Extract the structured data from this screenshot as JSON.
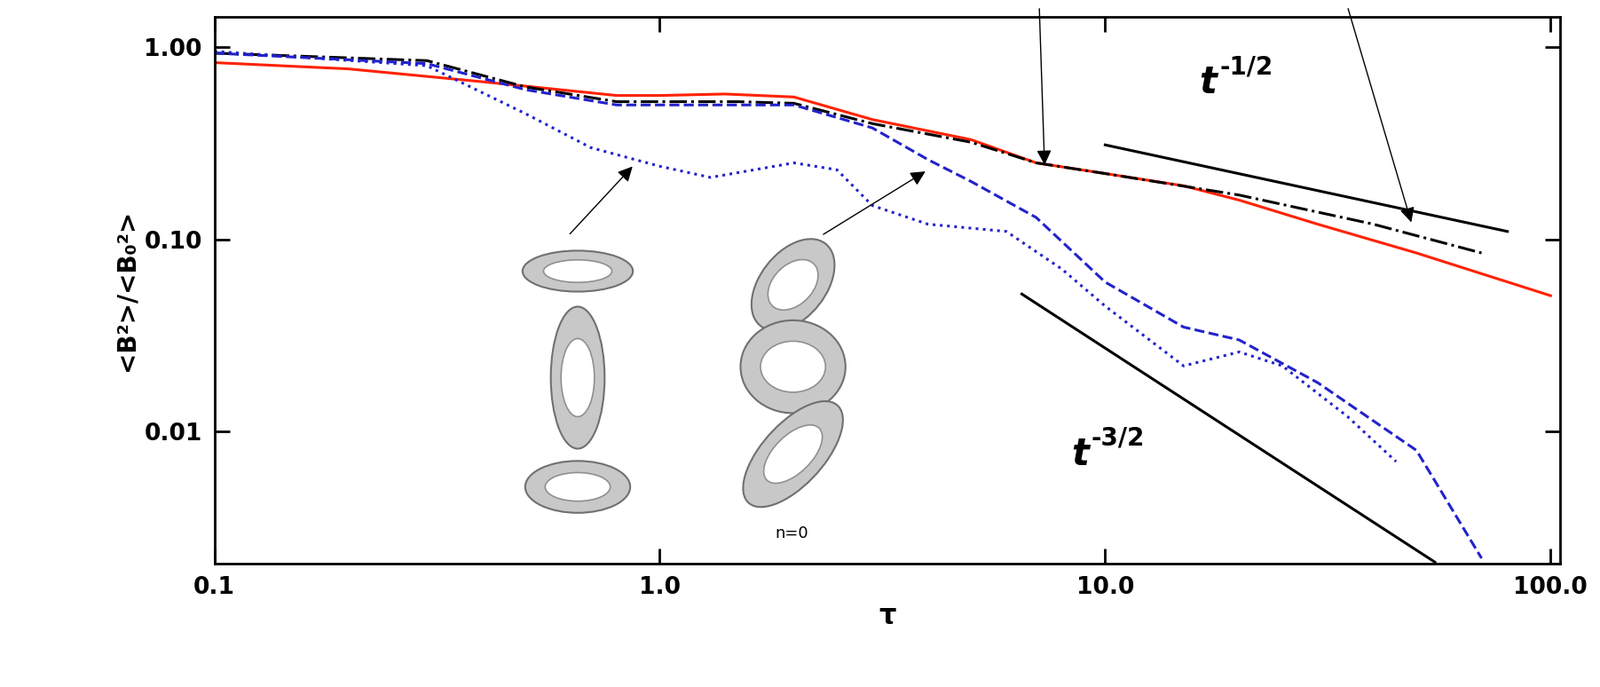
{
  "chart_data": {
    "type": "line",
    "x_label": "τ",
    "y_label": "<B²>/<B₀²>",
    "log": true,
    "grid": false,
    "xlim": [
      0.1,
      105
    ],
    "ylim": [
      0.00207,
      1.43
    ],
    "xticks": [
      {
        "value": 0.1,
        "label": "0.1"
      },
      {
        "value": 1.0,
        "label": "1.0"
      },
      {
        "value": 10.0,
        "label": "10.0"
      },
      {
        "value": 100.0,
        "label": "100.0"
      }
    ],
    "yticks": [
      {
        "value": 0.01,
        "label": "0.01"
      },
      {
        "value": 0.1,
        "label": "0.10"
      },
      {
        "value": 1.0,
        "label": "1.00"
      }
    ],
    "series": [
      {
        "color": "#ff2200",
        "line_style": "solid",
        "x": [
          0.1,
          0.2,
          0.4,
          0.8,
          1.0,
          1.4,
          2.0,
          3.0,
          5.0,
          7.0,
          10.0,
          15.0,
          20.0,
          30.0,
          50.0,
          100.0
        ],
        "values": [
          0.83,
          0.77,
          0.66,
          0.56,
          0.56,
          0.57,
          0.55,
          0.42,
          0.33,
          0.25,
          0.22,
          0.19,
          0.16,
          0.12,
          0.085,
          0.051
        ]
      },
      {
        "color": "#000000",
        "line_style": "dashdot",
        "x": [
          0.1,
          0.3,
          0.5,
          0.8,
          1.5,
          2.0,
          3.0,
          5.0,
          7.0,
          10.0,
          20.0,
          40.0,
          70.0
        ],
        "values": [
          0.93,
          0.85,
          0.62,
          0.52,
          0.52,
          0.51,
          0.4,
          0.32,
          0.25,
          0.22,
          0.17,
          0.12,
          0.085
        ]
      },
      {
        "color": "#2222cc",
        "line_style": "dashed",
        "x": [
          0.1,
          0.3,
          0.5,
          0.8,
          2.0,
          3.0,
          4.0,
          5.0,
          7.0,
          10.0,
          15.0,
          20.0,
          30.0,
          50.0,
          70.0
        ],
        "values": [
          0.93,
          0.82,
          0.6,
          0.5,
          0.5,
          0.38,
          0.26,
          0.2,
          0.13,
          0.06,
          0.035,
          0.03,
          0.018,
          0.008,
          0.0022
        ]
      },
      {
        "color": "#2222cc",
        "line_style": "dotted",
        "x": [
          0.1,
          0.3,
          0.5,
          0.7,
          1.0,
          1.3,
          2.0,
          2.5,
          3.0,
          4.0,
          6.0,
          8.0,
          10.0,
          15.0,
          20.0,
          25.0,
          35.0,
          45.0
        ],
        "values": [
          0.95,
          0.8,
          0.45,
          0.3,
          0.24,
          0.21,
          0.25,
          0.23,
          0.15,
          0.12,
          0.11,
          0.07,
          0.045,
          0.022,
          0.026,
          0.022,
          0.012,
          0.007
        ]
      },
      {
        "color": "#000000",
        "line_style": "solid",
        "x": [
          10.0,
          80.0
        ],
        "values": [
          0.31,
          0.11
        ]
      },
      {
        "color": "#000000",
        "line_style": "solid",
        "x": [
          6.5,
          55.0
        ],
        "values": [
          0.052,
          0.0021
        ]
      }
    ],
    "annotations": [
      {
        "text": "t",
        "superscript": "-1/2"
      },
      {
        "text": "t",
        "superscript": "-3/2"
      },
      {
        "text": "n=0"
      }
    ]
  }
}
